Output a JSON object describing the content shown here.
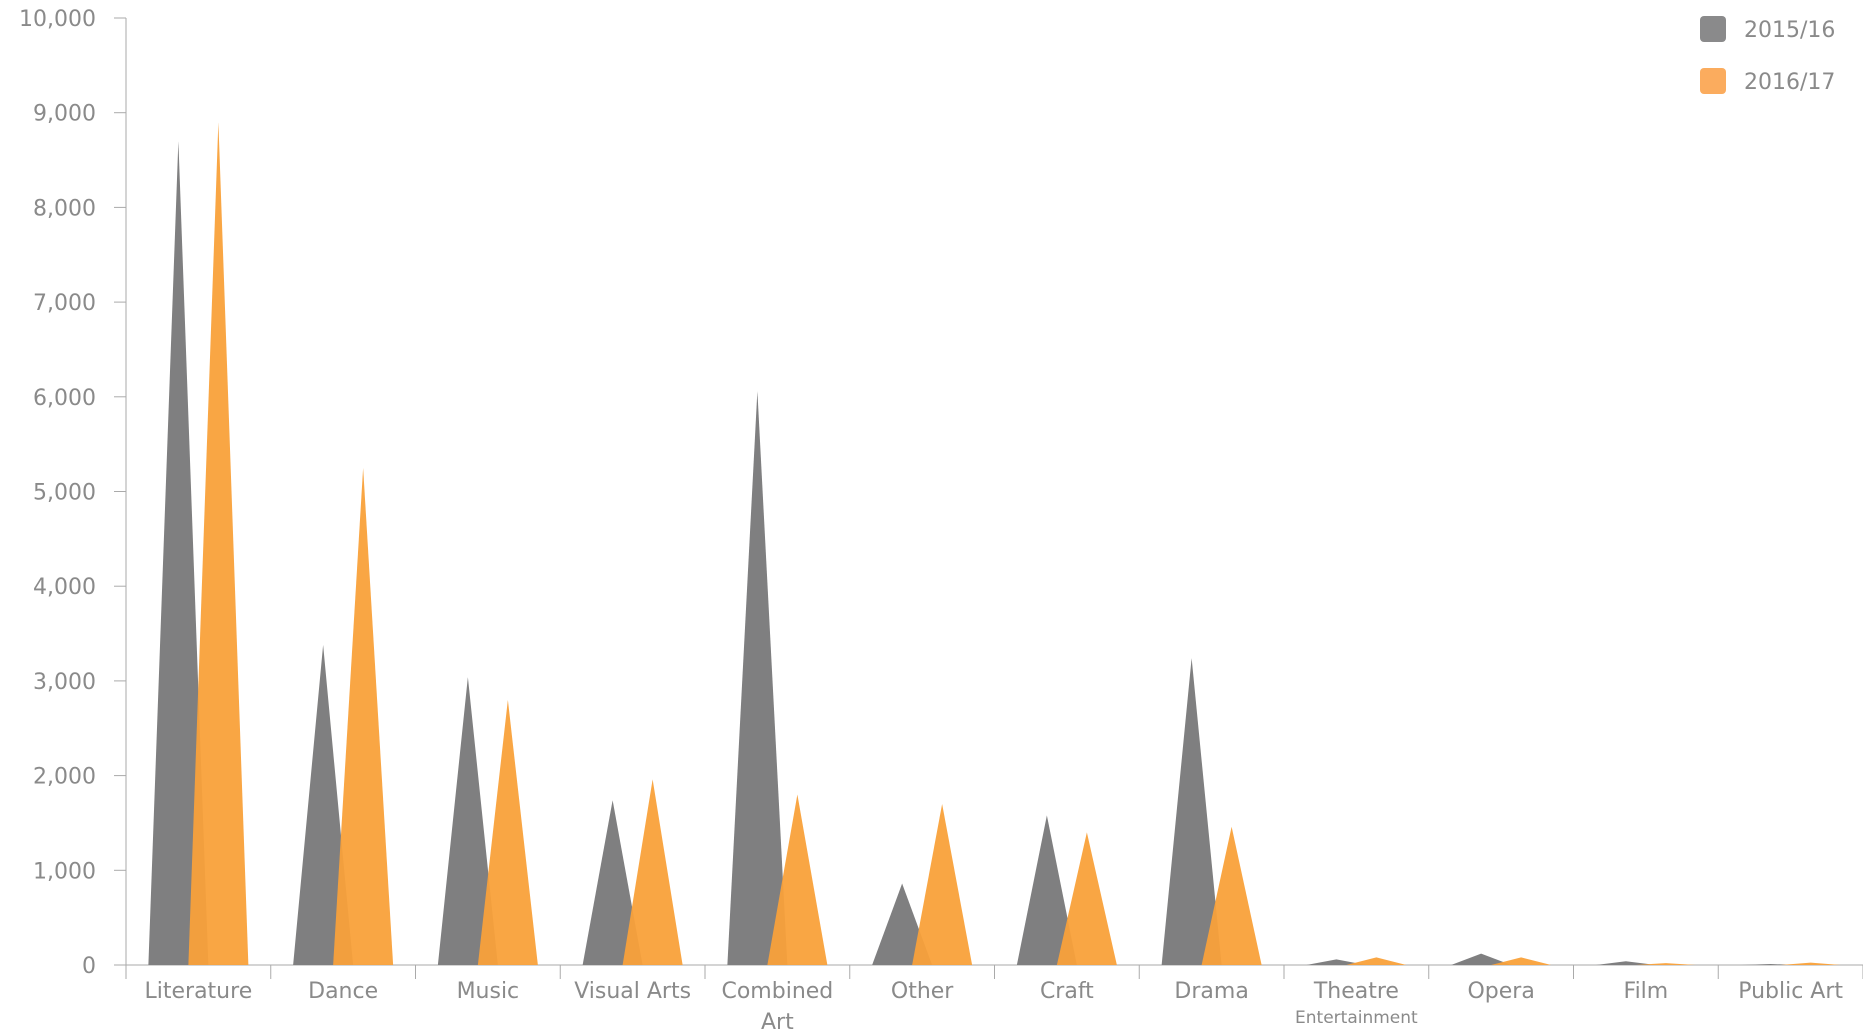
{
  "chart_data": {
    "type": "area",
    "categories": [
      "Literature",
      "Dance",
      "Music",
      "Visual Arts",
      "Combined Art",
      "Other",
      "Craft",
      "Drama",
      "Theatre Entertainment",
      "Opera",
      "Film",
      "Public Art"
    ],
    "category_display": [
      [
        "Literature"
      ],
      [
        "Dance"
      ],
      [
        "Music"
      ],
      [
        "Visual Arts"
      ],
      [
        "Combined",
        "Art"
      ],
      [
        "Other"
      ],
      [
        "Craft"
      ],
      [
        "Drama"
      ],
      [
        "Theatre"
      ],
      [
        "Opera"
      ],
      [
        "Film"
      ],
      [
        "Public Art"
      ]
    ],
    "category_sublabels": [
      "",
      "",
      "",
      "",
      "",
      "",
      "",
      "",
      "Entertainment",
      "",
      "",
      ""
    ],
    "series": [
      {
        "name": "2015/16",
        "color": "#7f7f80",
        "values": [
          8700,
          3380,
          3040,
          1740,
          6060,
          860,
          1580,
          3240,
          60,
          120,
          40,
          10
        ]
      },
      {
        "name": "2016/17",
        "color": "#f9a13a",
        "values": [
          8900,
          5250,
          2800,
          1960,
          1800,
          1700,
          1400,
          1460,
          80,
          80,
          20,
          25
        ]
      }
    ],
    "ylim": [
      0,
      10000
    ],
    "yticks": [
      0,
      1000,
      2000,
      3000,
      4000,
      5000,
      6000,
      7000,
      8000,
      9000,
      10000
    ],
    "ytick_labels": [
      "0",
      "1,000",
      "2,000",
      "3,000",
      "4,000",
      "5,000",
      "6,000",
      "7,000",
      "8,000",
      "9,000",
      "10,000"
    ],
    "legend": {
      "position": "top-right",
      "entries": [
        {
          "label": "2015/16",
          "color": "#8a8a8b"
        },
        {
          "label": "2016/17",
          "color": "#fbac5e"
        }
      ]
    },
    "title": "",
    "xlabel": "",
    "ylabel": "",
    "grid": false
  }
}
